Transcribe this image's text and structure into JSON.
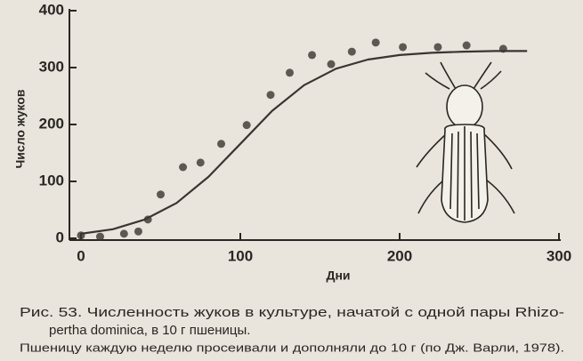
{
  "chart_data": {
    "type": "scatter",
    "x_label": "Дни",
    "y_label": "Число жуков",
    "xlim": [
      0,
      300
    ],
    "xticks": [
      0,
      100,
      200,
      300
    ],
    "ylim": [
      0,
      400
    ],
    "yticks": [
      0,
      100,
      200,
      300,
      400
    ],
    "color": "#3a3530",
    "series": [
      {
        "type": "scatter",
        "x": [
          0,
          12,
          27,
          36,
          42,
          50,
          64,
          75,
          88,
          104,
          119,
          131,
          145,
          157,
          170,
          185,
          202,
          224,
          242,
          265
        ],
        "values": [
          5,
          3,
          8,
          12,
          33,
          77,
          125,
          133,
          166,
          199,
          252,
          291,
          322,
          306,
          328,
          344,
          336,
          336,
          339,
          333
        ]
      },
      {
        "type": "line",
        "x": [
          0,
          20,
          40,
          60,
          80,
          100,
          120,
          140,
          160,
          180,
          200,
          220,
          240,
          260,
          280
        ],
        "values": [
          8,
          16,
          33,
          62,
          108,
          166,
          224,
          269,
          298,
          314,
          322,
          326,
          328,
          329,
          329
        ]
      }
    ]
  },
  "caption": [
    "Рис. 53. Численность жуков в культуре, начатой с одной пары Rhizo-",
    "pertha dominica, в 10 г пшеницы."
  ],
  "note": "Пшеницу каждую неделю просеивали и дополняли до 10 г (по Дж. Варли, 1978)."
}
